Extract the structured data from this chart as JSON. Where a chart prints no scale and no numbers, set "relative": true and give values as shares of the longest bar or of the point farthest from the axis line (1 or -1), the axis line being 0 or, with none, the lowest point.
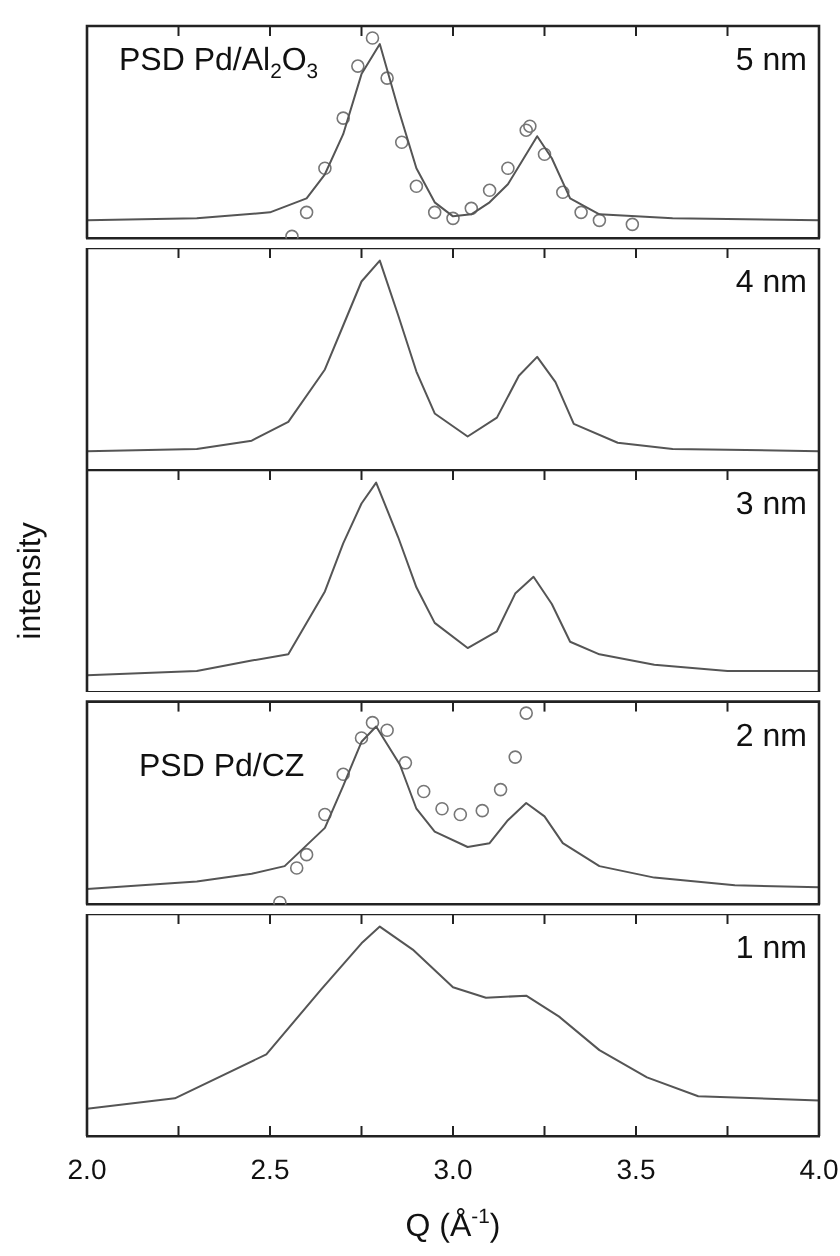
{
  "chart_data": [
    {
      "type": "line",
      "title": "5 nm",
      "relative": true,
      "xlim": [
        2,
        4
      ],
      "tick_labels": false,
      "xticks": [
        {
          "value": 2.25,
          "label": null
        },
        {
          "value": 2.5,
          "label": null
        },
        {
          "value": 2.75,
          "label": null
        },
        {
          "value": 3,
          "label": null
        },
        {
          "value": 3.25,
          "label": null
        },
        {
          "value": 3.5,
          "label": null
        },
        {
          "value": 3.75,
          "label": null
        }
      ],
      "series": [
        {
          "color": "#555555",
          "x": [
            2.0,
            2.3,
            2.5,
            2.6,
            2.65,
            2.7,
            2.75,
            2.8,
            2.85,
            2.9,
            2.95,
            3.0,
            3.05,
            3.1,
            3.15,
            3.2,
            3.23,
            3.27,
            3.32,
            3.4,
            3.6,
            4.0
          ],
          "values": [
            0.09,
            0.1,
            0.13,
            0.2,
            0.32,
            0.52,
            0.82,
            0.97,
            0.65,
            0.35,
            0.18,
            0.11,
            0.12,
            0.18,
            0.27,
            0.42,
            0.51,
            0.4,
            0.2,
            0.12,
            0.1,
            0.09
          ]
        },
        {
          "type": "scatter",
          "marker": "circle",
          "name": "PSD Pd/Al$_{2}$O$_{3}$",
          "color": "#777777",
          "x": [
            2.56,
            2.6,
            2.65,
            2.7,
            2.74,
            2.78,
            2.82,
            2.86,
            2.9,
            2.95,
            3.0,
            3.05,
            3.1,
            3.15,
            3.2,
            3.21,
            3.25,
            3.3,
            3.35,
            3.4,
            3.49
          ],
          "values": [
            0.01,
            0.13,
            0.35,
            0.6,
            0.86,
            1,
            0.8,
            0.48,
            0.26,
            0.13,
            0.1,
            0.15,
            0.24,
            0.35,
            0.54,
            0.56,
            0.42,
            0.23,
            0.13,
            0.09,
            0.07
          ]
        }
      ]
    },
    {
      "type": "line",
      "title": "4 nm",
      "relative": true,
      "xlim": [
        2,
        4
      ],
      "tick_labels": false,
      "xticks": [
        {
          "value": 2.25,
          "label": null
        },
        {
          "value": 2.5,
          "label": null
        },
        {
          "value": 2.75,
          "label": null
        },
        {
          "value": 3,
          "label": null
        },
        {
          "value": 3.25,
          "label": null
        },
        {
          "value": 3.5,
          "label": null
        },
        {
          "value": 3.75,
          "label": null
        }
      ],
      "series": [
        {
          "color": "#555555",
          "x": [
            2.0,
            2.3,
            2.45,
            2.55,
            2.65,
            2.7,
            2.75,
            2.8,
            2.85,
            2.9,
            2.95,
            3.04,
            3.12,
            3.18,
            3.23,
            3.28,
            3.33,
            3.45,
            3.6,
            4.0
          ],
          "values": [
            0.09,
            0.1,
            0.14,
            0.23,
            0.48,
            0.69,
            0.9,
            1,
            0.74,
            0.47,
            0.27,
            0.16,
            0.25,
            0.45,
            0.54,
            0.42,
            0.22,
            0.13,
            0.1,
            0.09
          ]
        }
      ]
    },
    {
      "type": "line",
      "title": "3 nm",
      "ylabel": "intensity",
      "relative": true,
      "xlim": [
        2,
        4
      ],
      "tick_labels": false,
      "xticks": [
        {
          "value": 2.25,
          "label": null
        },
        {
          "value": 2.5,
          "label": null
        },
        {
          "value": 2.75,
          "label": null
        },
        {
          "value": 3,
          "label": null
        },
        {
          "value": 3.25,
          "label": null
        },
        {
          "value": 3.5,
          "label": null
        },
        {
          "value": 3.75,
          "label": null
        }
      ],
      "series": [
        {
          "color": "#555555",
          "x": [
            2.0,
            2.3,
            2.45,
            2.55,
            2.65,
            2.7,
            2.75,
            2.79,
            2.85,
            2.9,
            2.95,
            3.04,
            3.12,
            3.17,
            3.22,
            3.27,
            3.32,
            3.4,
            3.55,
            3.75,
            4.0
          ],
          "values": [
            0.08,
            0.1,
            0.15,
            0.18,
            0.48,
            0.71,
            0.9,
            1,
            0.74,
            0.5,
            0.33,
            0.21,
            0.29,
            0.47,
            0.55,
            0.42,
            0.24,
            0.18,
            0.13,
            0.1,
            0.1
          ]
        }
      ]
    },
    {
      "type": "line",
      "title": "2 nm",
      "relative": true,
      "xlim": [
        2,
        4
      ],
      "tick_labels": false,
      "xticks": [
        {
          "value": 2.25,
          "label": null
        },
        {
          "value": 2.5,
          "label": null
        },
        {
          "value": 2.75,
          "label": null
        },
        {
          "value": 3,
          "label": null
        },
        {
          "value": 3.25,
          "label": null
        },
        {
          "value": 3.5,
          "label": null
        },
        {
          "value": 3.75,
          "label": null
        }
      ],
      "series": [
        {
          "color": "#555555",
          "x": [
            2.0,
            2.3,
            2.45,
            2.54,
            2.65,
            2.7,
            2.75,
            2.79,
            2.855,
            2.9,
            2.95,
            3.04,
            3.1,
            3.15,
            3.2,
            3.25,
            3.3,
            3.4,
            3.55,
            3.77,
            4.0
          ],
          "values": [
            0.08,
            0.12,
            0.16,
            0.2,
            0.4,
            0.62,
            0.85,
            0.93,
            0.73,
            0.5,
            0.38,
            0.3,
            0.32,
            0.44,
            0.53,
            0.46,
            0.32,
            0.2,
            0.14,
            0.1,
            0.09
          ]
        },
        {
          "type": "scatter",
          "marker": "circle",
          "name": "PSD Pd/CZ",
          "color": "#777777",
          "x": [
            2.527,
            2.573,
            2.6,
            2.65,
            2.7,
            2.75,
            2.78,
            2.82,
            2.87,
            2.92,
            2.97,
            3.02,
            3.08,
            3.13,
            3.17,
            3.2
          ],
          "values": [
            0.01,
            0.19,
            0.26,
            0.47,
            0.68,
            0.87,
            0.95,
            0.91,
            0.74,
            0.59,
            0.5,
            0.47,
            0.49,
            0.6,
            0.77,
            1
          ]
        }
      ]
    },
    {
      "type": "line",
      "title": "1 nm",
      "xlabel": "Q (Å$^{-1}$)",
      "relative": true,
      "xlim": [
        2,
        4
      ],
      "tick_labels": "x",
      "xticks": [
        {
          "value": 2,
          "label": "2.0"
        },
        {
          "value": 2.25,
          "label": null
        },
        {
          "value": 2.5,
          "label": "2.5"
        },
        {
          "value": 2.75,
          "label": null
        },
        {
          "value": 3,
          "label": "3.0"
        },
        {
          "value": 3.25,
          "label": null
        },
        {
          "value": 3.5,
          "label": "3.5"
        },
        {
          "value": 3.75,
          "label": null
        },
        {
          "value": 4,
          "label": "4.0"
        }
      ],
      "series": [
        {
          "color": "#555555",
          "x": [
            2.0,
            2.24,
            2.49,
            2.64,
            2.75,
            2.8,
            2.89,
            3.0,
            3.09,
            3.2,
            3.29,
            3.4,
            3.53,
            3.67,
            4.0
          ],
          "values": [
            0.13,
            0.18,
            0.39,
            0.7,
            0.92,
            1,
            0.89,
            0.71,
            0.66,
            0.67,
            0.57,
            0.41,
            0.28,
            0.19,
            0.17
          ]
        }
      ]
    }
  ]
}
